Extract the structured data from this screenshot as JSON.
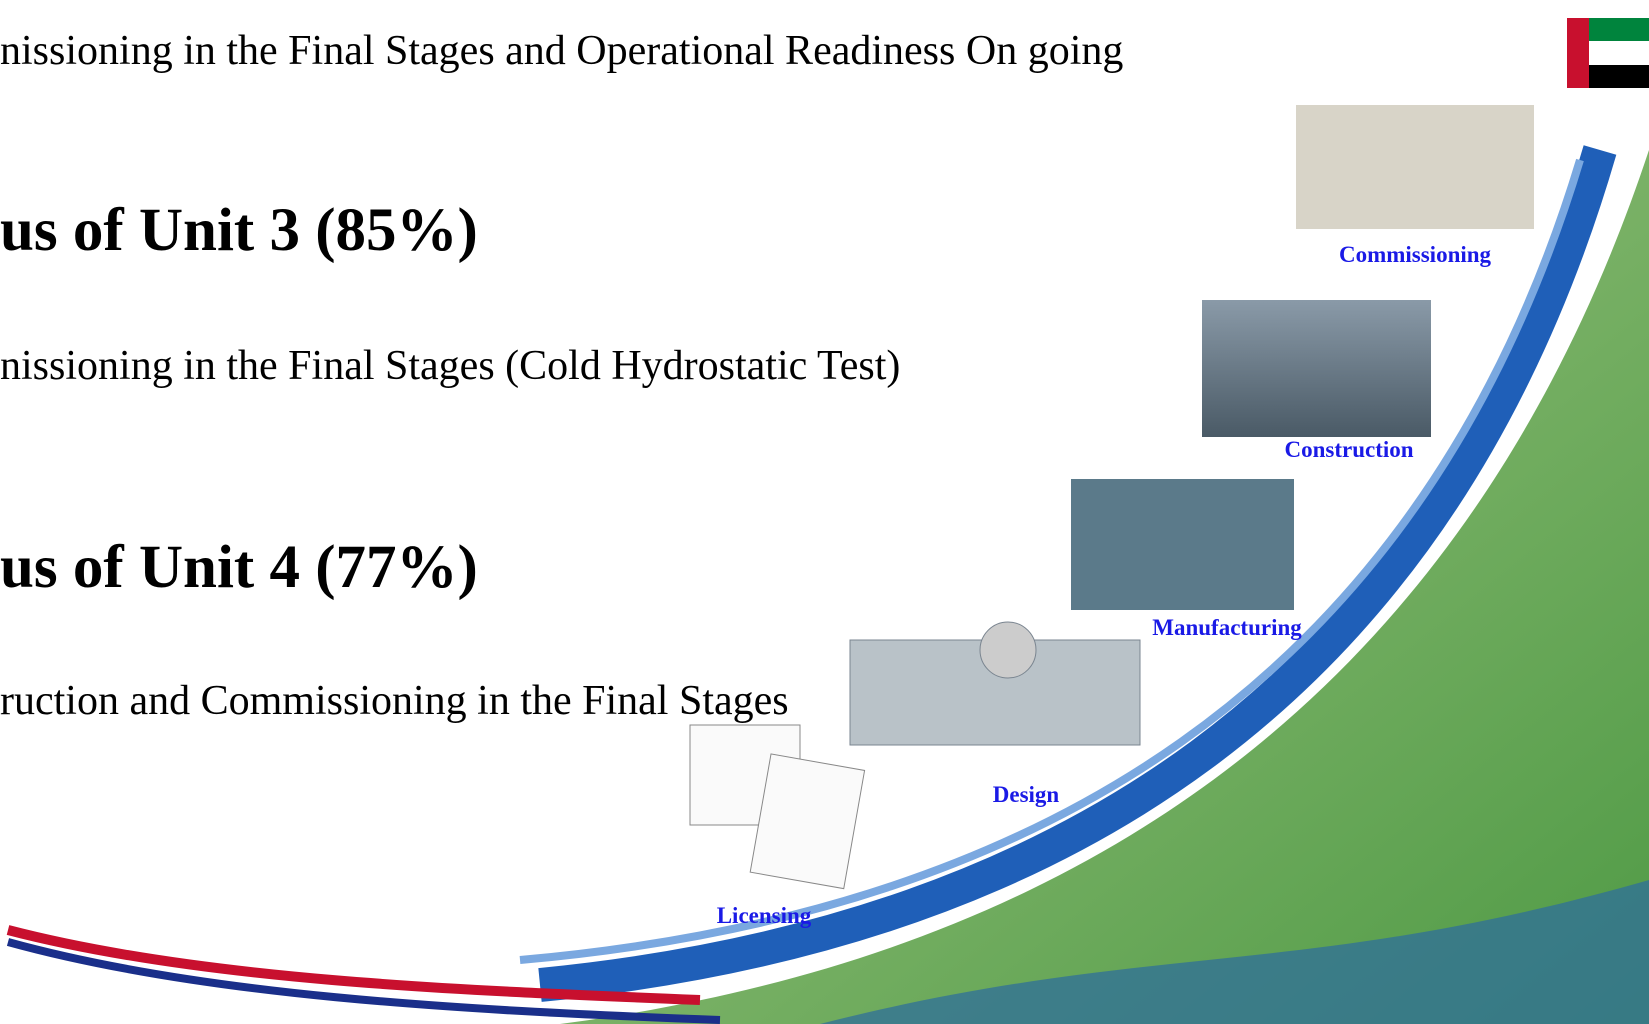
{
  "slide": {
    "lines": [
      {
        "text": "nissioning in the Final Stages and Operational Readiness On going",
        "kind": "body"
      },
      {
        "text": "us of Unit 3 (85%)",
        "kind": "heading"
      },
      {
        "text": "nissioning in the Final Stages (Cold Hydrostatic Test)",
        "kind": "body"
      },
      {
        "text": "us of Unit 4 (77%)",
        "kind": "heading"
      },
      {
        "text": "ruction and Commissioning in the Final Stages",
        "kind": "body"
      }
    ],
    "stages": [
      "Commissioning",
      "Construction",
      "Manufacturing",
      "Design",
      "Licensing"
    ]
  }
}
